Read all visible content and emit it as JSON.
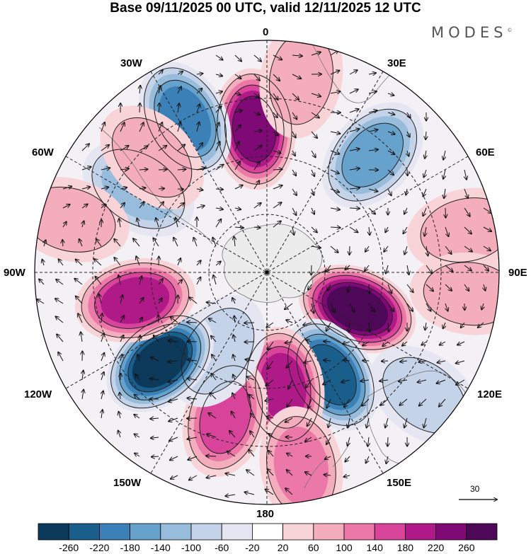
{
  "title": "Base 09/11/2025 00 UTC, valid 12/11/2025 12 UTC",
  "brand": {
    "name": "MODES",
    "mark": "©"
  },
  "longitude_labels": {
    "top": "0",
    "bottom": "180",
    "left": "90W",
    "right": "90E",
    "upper_left_30": "30W",
    "upper_right_30": "30E",
    "upper_left_60": "60W",
    "upper_right_60": "60E",
    "lower_left_120": "120W",
    "lower_right_120": "120E",
    "lower_left_150": "150W",
    "lower_right_150": "150E"
  },
  "reference_vector": {
    "value": "30"
  },
  "colorbar": {
    "ticks": [
      "-260",
      "-220",
      "-180",
      "-140",
      "-100",
      "-60",
      "-20",
      "20",
      "60",
      "100",
      "140",
      "180",
      "220",
      "260"
    ],
    "colors": [
      "#0d3a5a",
      "#1a5e8c",
      "#3b80b6",
      "#67a2cd",
      "#98bcdb",
      "#c5d3e9",
      "#e6e6f2",
      "#ffffff",
      "#f8d4d8",
      "#f4adbc",
      "#eb78a6",
      "#d8449a",
      "#b01a88",
      "#7f0a76",
      "#4d0858"
    ]
  },
  "anomaly_centers": [
    {
      "angle": 355,
      "r": 0.62,
      "value": 240
    },
    {
      "angle": 42,
      "r": 0.68,
      "value": -140
    },
    {
      "angle": 112,
      "r": 0.42,
      "value": 280
    },
    {
      "angle": 148,
      "r": 0.52,
      "value": -220
    },
    {
      "angle": 172,
      "r": 0.5,
      "value": 200
    },
    {
      "angle": 196,
      "r": 0.65,
      "value": 140
    },
    {
      "angle": 212,
      "r": 0.4,
      "value": -80
    },
    {
      "angle": 230,
      "r": 0.6,
      "value": -260
    },
    {
      "angle": 258,
      "r": 0.58,
      "value": 200
    },
    {
      "angle": 303,
      "r": 0.66,
      "value": -100
    },
    {
      "angle": 332,
      "r": 0.75,
      "value": -200
    },
    {
      "angle": 315,
      "r": 0.7,
      "value": 80
    },
    {
      "angle": 78,
      "r": 0.88,
      "value": 70
    },
    {
      "angle": 96,
      "r": 0.88,
      "value": 90
    },
    {
      "angle": 128,
      "r": 0.86,
      "value": -60
    },
    {
      "angle": 10,
      "r": 0.85,
      "value": 60
    },
    {
      "angle": 285,
      "r": 0.88,
      "value": 60
    },
    {
      "angle": 170,
      "r": 0.85,
      "value": 120
    }
  ]
}
